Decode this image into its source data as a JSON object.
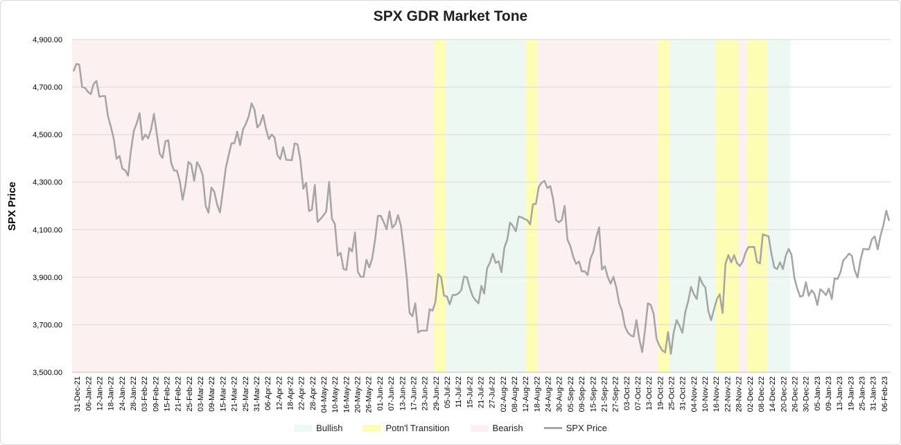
{
  "chart_data": {
    "type": "line",
    "title": "SPX GDR Market Tone",
    "xlabel": "",
    "ylabel": "SPX Price",
    "ylim": [
      3500,
      4900
    ],
    "y_ticks": [
      "3,500.00",
      "3,700.00",
      "3,900.00",
      "4,100.00",
      "4,300.00",
      "4,500.00",
      "4,700.00",
      "4,900.00"
    ],
    "x_ticks": [
      "31-Dec-21",
      "06-Jan-22",
      "12-Jan-22",
      "18-Jan-22",
      "24-Jan-22",
      "28-Jan-22",
      "03-Feb-22",
      "09-Feb-22",
      "15-Feb-22",
      "21-Feb-22",
      "25-Feb-22",
      "03-Mar-22",
      "09-Mar-22",
      "15-Mar-22",
      "21-Mar-22",
      "25-Mar-22",
      "31-Mar-22",
      "06-Apr-22",
      "12-Apr-22",
      "18-Apr-22",
      "22-Apr-22",
      "28-Apr-22",
      "04-May-22",
      "10-May-22",
      "16-May-22",
      "20-May-22",
      "26-May-22",
      "01-Jun-22",
      "07-Jun-22",
      "13-Jun-22",
      "17-Jun-22",
      "23-Jun-22",
      "29-Jun-22",
      "05-Jul-22",
      "11-Jul-22",
      "15-Jul-22",
      "21-Jul-22",
      "27-Jul-22",
      "02-Aug-22",
      "08-Aug-22",
      "12-Aug-22",
      "18-Aug-22",
      "24-Aug-22",
      "30-Aug-22",
      "05-Sep-22",
      "09-Sep-22",
      "15-Sep-22",
      "21-Sep-22",
      "27-Sep-22",
      "03-Oct-22",
      "07-Oct-22",
      "13-Oct-22",
      "19-Oct-22",
      "25-Oct-22",
      "31-Oct-22",
      "04-Nov-22",
      "10-Nov-22",
      "16-Nov-22",
      "22-Nov-22",
      "28-Nov-22",
      "02-Dec-22",
      "08-Dec-22",
      "14-Dec-22",
      "20-Dec-22",
      "26-Dec-22",
      "30-Dec-22",
      "05-Jan-23",
      "09-Jan-23",
      "13-Jan-23",
      "19-Jan-23",
      "25-Jan-23",
      "31-Jan-23",
      "06-Feb-23"
    ],
    "legend": [
      "Bullish",
      "Potn'l Transition",
      "Bearish",
      "SPX Price"
    ],
    "legend_position": "bottom",
    "grid": true,
    "colors": {
      "Bullish": "#eef8f3",
      "Potn'l Transition": "#fefdb4",
      "Bearish": "#fcf0f0",
      "SPX Price": "#a6a6a6"
    },
    "regimes": [
      {
        "tone": "Bearish",
        "from": 0,
        "to": 126
      },
      {
        "tone": "Potn'l Transition",
        "from": 126,
        "to": 130
      },
      {
        "tone": "Bullish",
        "from": 130,
        "to": 158
      },
      {
        "tone": "Potn'l Transition",
        "from": 158,
        "to": 162
      },
      {
        "tone": "Bearish",
        "from": 162,
        "to": 204
      },
      {
        "tone": "Potn'l Transition",
        "from": 204,
        "to": 208
      },
      {
        "tone": "Bullish",
        "from": 208,
        "to": 224
      },
      {
        "tone": "Potn'l Transition",
        "from": 224,
        "to": 232
      },
      {
        "tone": "Bearish",
        "from": 232,
        "to": 235
      },
      {
        "tone": "Potn'l Transition",
        "from": 235,
        "to": 242
      },
      {
        "tone": "Bullish",
        "from": 242,
        "to": 250
      }
    ],
    "series": [
      {
        "name": "SPX Price",
        "values": [
          4766,
          4797,
          4794,
          4700,
          4697,
          4680,
          4670,
          4713,
          4726,
          4659,
          4662,
          4662,
          4577,
          4533,
          4483,
          4398,
          4410,
          4357,
          4350,
          4327,
          4432,
          4516,
          4547,
          4590,
          4478,
          4500,
          4484,
          4522,
          4587,
          4504,
          4419,
          4402,
          4472,
          4476,
          4380,
          4349,
          4348,
          4304,
          4226,
          4289,
          4385,
          4374,
          4306,
          4384,
          4363,
          4329,
          4201,
          4171,
          4277,
          4260,
          4205,
          4173,
          4263,
          4358,
          4412,
          4463,
          4463,
          4512,
          4456,
          4521,
          4545,
          4576,
          4631,
          4606,
          4530,
          4545,
          4582,
          4525,
          4481,
          4500,
          4488,
          4413,
          4397,
          4447,
          4394,
          4393,
          4392,
          4463,
          4459,
          4393,
          4272,
          4297,
          4178,
          4184,
          4288,
          4132,
          4145,
          4160,
          4176,
          4301,
          4146,
          4123,
          3991,
          4002,
          3935,
          3930,
          4023,
          4008,
          4088,
          3923,
          3901,
          3901,
          3973,
          3941,
          3979,
          4058,
          4158,
          4158,
          4132,
          4101,
          4177,
          4108,
          4122,
          4161,
          4116,
          4017,
          3901,
          3750,
          3736,
          3790,
          3667,
          3675,
          3675,
          3675,
          3765,
          3759,
          3795,
          3912,
          3900,
          3822,
          3819,
          3785,
          3825,
          3825,
          3831,
          3845,
          3903,
          3899,
          3855,
          3819,
          3803,
          3790,
          3863,
          3831,
          3937,
          3961,
          3999,
          3960,
          3967,
          3921,
          4024,
          4057,
          4130,
          4115,
          4093,
          4155,
          4152,
          4145,
          4140,
          4122,
          4207,
          4208,
          4280,
          4298,
          4305,
          4275,
          4283,
          4228,
          4141,
          4131,
          4140,
          4200,
          4058,
          4030,
          3986,
          3956,
          3966,
          3924,
          3925,
          3909,
          3979,
          4007,
          4067,
          4110,
          3932,
          3946,
          3901,
          3873,
          3901,
          3856,
          3790,
          3758,
          3693,
          3667,
          3655,
          3650,
          3719,
          3640,
          3585,
          3678,
          3790,
          3783,
          3745,
          3640,
          3612,
          3592,
          3583,
          3669,
          3577,
          3669,
          3719,
          3695,
          3666,
          3752,
          3798,
          3859,
          3829,
          3808,
          3901,
          3872,
          3856,
          3759,
          3719,
          3764,
          3807,
          3828,
          3749,
          3956,
          3993,
          3962,
          3992,
          3959,
          3947,
          3965,
          4003,
          4027,
          4027,
          4027,
          3964,
          3958,
          4080,
          4076,
          4072,
          3999,
          3941,
          3934,
          3963,
          3934,
          3990,
          4019,
          3995,
          3896,
          3852,
          3818,
          3822,
          3879,
          3822,
          3845,
          3829,
          3783,
          3849,
          3839,
          3824,
          3852,
          3808,
          3895,
          3892,
          3919,
          3970,
          3983,
          3999,
          3990,
          3929,
          3898,
          3972,
          4019,
          4017,
          4017,
          4060,
          4071,
          4017,
          4076,
          4119,
          4180,
          4137
        ]
      }
    ]
  }
}
